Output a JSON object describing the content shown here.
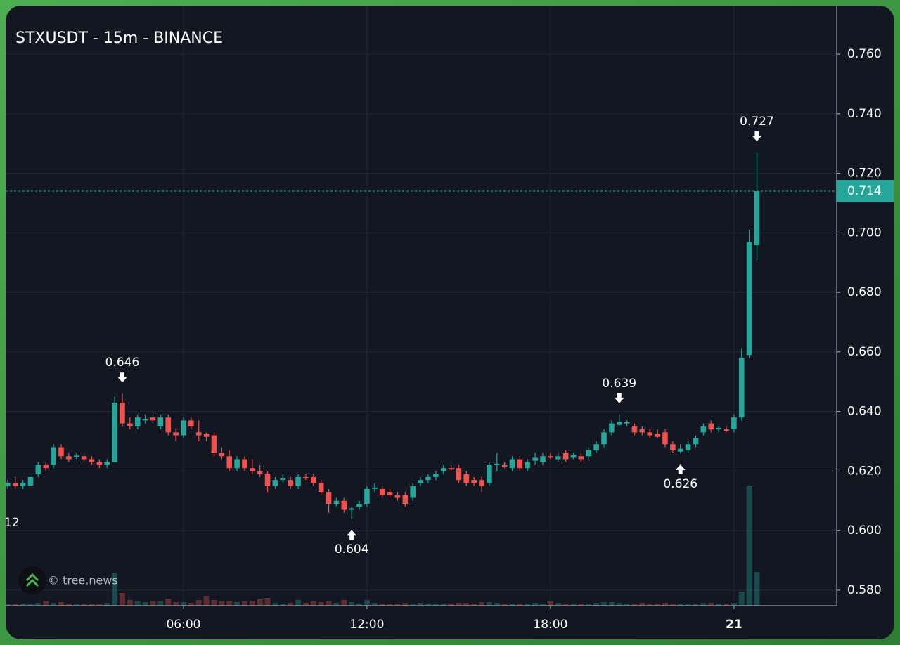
{
  "chart_data": {
    "type": "candlestick",
    "title": "STXUSDT - 15m - BINANCE",
    "watermark": "© tree.news",
    "edge_label": "12",
    "up_color": "#26a69a",
    "down_color": "#ef5350",
    "grid": true,
    "last_price": {
      "value": 0.714,
      "label": "0.714"
    },
    "xlim": [
      0.184,
      27.36
    ],
    "xticks": [
      {
        "value": 6,
        "label": "06:00"
      },
      {
        "value": 12,
        "label": "12:00"
      },
      {
        "value": 18,
        "label": "18:00"
      },
      {
        "value": 24,
        "label": "21"
      }
    ],
    "ylim": [
      0.5748,
      0.7763
    ],
    "yticks": [
      {
        "value": 0.58,
        "label": "0.580"
      },
      {
        "value": 0.6,
        "label": "0.600"
      },
      {
        "value": 0.62,
        "label": "0.620"
      },
      {
        "value": 0.64,
        "label": "0.640"
      },
      {
        "value": 0.66,
        "label": "0.660"
      },
      {
        "value": 0.68,
        "label": "0.680"
      },
      {
        "value": 0.7,
        "label": "0.700"
      },
      {
        "value": 0.72,
        "label": "0.720"
      },
      {
        "value": 0.74,
        "label": "0.740"
      },
      {
        "value": 0.76,
        "label": "0.760"
      }
    ],
    "x": [
      0.25,
      0.5,
      0.75,
      1,
      1.25,
      1.5,
      1.75,
      2,
      2.25,
      2.5,
      2.75,
      3,
      3.25,
      3.5,
      3.75,
      4,
      4.25,
      4.5,
      4.75,
      5,
      5.25,
      5.5,
      5.75,
      6,
      6.25,
      6.5,
      6.75,
      7,
      7.25,
      7.5,
      7.75,
      8,
      8.25,
      8.5,
      8.75,
      9,
      9.25,
      9.5,
      9.75,
      10,
      10.25,
      10.5,
      10.75,
      11,
      11.25,
      11.5,
      11.75,
      12,
      12.25,
      12.5,
      12.75,
      13,
      13.25,
      13.5,
      13.75,
      14,
      14.25,
      14.5,
      14.75,
      15,
      15.25,
      15.5,
      15.75,
      16,
      16.25,
      16.5,
      16.75,
      17,
      17.25,
      17.5,
      17.75,
      18,
      18.25,
      18.5,
      18.75,
      19,
      19.25,
      19.5,
      19.75,
      20,
      20.25,
      20.5,
      20.75,
      21,
      21.25,
      21.5,
      21.75,
      22,
      22.25,
      22.5,
      22.75,
      23,
      23.25,
      23.5,
      23.75,
      24,
      24.25,
      24.5,
      24.75
    ],
    "open": [
      0.615,
      0.616,
      0.615,
      0.615,
      0.619,
      0.622,
      0.622,
      0.628,
      0.625,
      0.6248,
      0.625,
      0.624,
      0.623,
      0.622,
      0.623,
      0.643,
      0.636,
      0.635,
      0.637,
      0.638,
      0.635,
      0.638,
      0.633,
      0.632,
      0.637,
      0.633,
      0.6325,
      0.632,
      0.626,
      0.625,
      0.621,
      0.624,
      0.621,
      0.62,
      0.619,
      0.615,
      0.617,
      0.617,
      0.615,
      0.618,
      0.618,
      0.616,
      0.613,
      0.609,
      0.61,
      0.607,
      0.608,
      0.609,
      0.614,
      0.614,
      0.613,
      0.612,
      0.612,
      0.611,
      0.616,
      0.617,
      0.618,
      0.62,
      0.621,
      0.621,
      0.619,
      0.617,
      0.617,
      0.616,
      0.622,
      0.622,
      0.621,
      0.624,
      0.621,
      0.6235,
      0.623,
      0.625,
      0.624,
      0.626,
      0.6245,
      0.625,
      0.625,
      0.627,
      0.629,
      0.633,
      0.6355,
      0.636,
      0.635,
      0.634,
      0.633,
      0.6325,
      0.633,
      0.629,
      0.6265,
      0.627,
      0.629,
      0.633,
      0.636,
      0.634,
      0.634,
      0.634,
      0.638,
      0.659,
      0.696
    ],
    "high": [
      0.617,
      0.618,
      0.617,
      0.618,
      0.623,
      0.623,
      0.629,
      0.629,
      0.626,
      0.626,
      0.626,
      0.625,
      0.624,
      0.624,
      0.645,
      0.646,
      0.638,
      0.639,
      0.639,
      0.639,
      0.639,
      0.639,
      0.634,
      0.638,
      0.638,
      0.637,
      0.633,
      0.633,
      0.628,
      0.627,
      0.625,
      0.625,
      0.624,
      0.622,
      0.62,
      0.618,
      0.619,
      0.618,
      0.619,
      0.619,
      0.619,
      0.617,
      0.614,
      0.611,
      0.611,
      0.608,
      0.61,
      0.615,
      0.616,
      0.615,
      0.614,
      0.613,
      0.613,
      0.616,
      0.618,
      0.619,
      0.62,
      0.622,
      0.622,
      0.622,
      0.62,
      0.618,
      0.618,
      0.623,
      0.626,
      0.623,
      0.625,
      0.625,
      0.624,
      0.626,
      0.626,
      0.626,
      0.626,
      0.627,
      0.626,
      0.626,
      0.628,
      0.63,
      0.634,
      0.637,
      0.639,
      0.637,
      0.636,
      0.635,
      0.634,
      0.634,
      0.634,
      0.63,
      0.629,
      0.63,
      0.632,
      0.636,
      0.637,
      0.635,
      0.635,
      0.639,
      0.661,
      0.701,
      0.727
    ],
    "low": [
      0.614,
      0.614,
      0.614,
      0.615,
      0.618,
      0.62,
      0.621,
      0.624,
      0.623,
      0.624,
      0.623,
      0.622,
      0.621,
      0.621,
      0.623,
      0.635,
      0.634,
      0.634,
      0.636,
      0.636,
      0.634,
      0.632,
      0.63,
      0.631,
      0.634,
      0.63,
      0.63,
      0.625,
      0.624,
      0.62,
      0.62,
      0.62,
      0.619,
      0.618,
      0.613,
      0.614,
      0.616,
      0.614,
      0.614,
      0.617,
      0.615,
      0.612,
      0.606,
      0.608,
      0.606,
      0.604,
      0.607,
      0.608,
      0.613,
      0.611,
      0.611,
      0.61,
      0.608,
      0.61,
      0.615,
      0.616,
      0.617,
      0.619,
      0.62,
      0.616,
      0.615,
      0.615,
      0.613,
      0.615,
      0.62,
      0.621,
      0.62,
      0.62,
      0.62,
      0.622,
      0.622,
      0.624,
      0.623,
      0.623,
      0.624,
      0.623,
      0.624,
      0.626,
      0.628,
      0.632,
      0.635,
      0.635,
      0.632,
      0.632,
      0.631,
      0.631,
      0.628,
      0.626,
      0.626,
      0.626,
      0.628,
      0.632,
      0.633,
      0.633,
      0.633,
      0.633,
      0.637,
      0.658,
      0.691
    ],
    "close": [
      0.616,
      0.615,
      0.616,
      0.618,
      0.622,
      0.621,
      0.628,
      0.625,
      0.624,
      0.6252,
      0.624,
      0.623,
      0.622,
      0.623,
      0.643,
      0.636,
      0.635,
      0.638,
      0.6375,
      0.637,
      0.638,
      0.633,
      0.632,
      0.637,
      0.635,
      0.632,
      0.6315,
      0.626,
      0.625,
      0.621,
      0.624,
      0.621,
      0.62,
      0.619,
      0.615,
      0.617,
      0.6175,
      0.615,
      0.618,
      0.6175,
      0.616,
      0.613,
      0.609,
      0.61,
      0.607,
      0.6075,
      0.609,
      0.614,
      0.6145,
      0.612,
      0.612,
      0.611,
      0.609,
      0.615,
      0.617,
      0.618,
      0.619,
      0.621,
      0.6205,
      0.617,
      0.616,
      0.616,
      0.615,
      0.622,
      0.6225,
      0.6215,
      0.624,
      0.621,
      0.623,
      0.6245,
      0.625,
      0.6245,
      0.625,
      0.624,
      0.6255,
      0.624,
      0.627,
      0.629,
      0.633,
      0.636,
      0.6365,
      0.6365,
      0.633,
      0.633,
      0.632,
      0.6315,
      0.629,
      0.627,
      0.6275,
      0.629,
      0.631,
      0.635,
      0.634,
      0.6345,
      0.6335,
      0.638,
      0.658,
      0.697,
      0.714
    ],
    "volume": [
      2,
      2,
      3,
      3,
      4,
      7,
      4,
      5,
      3,
      3,
      3,
      2,
      3,
      4,
      46,
      18,
      8,
      6,
      5,
      6,
      6,
      10,
      5,
      5,
      4,
      8,
      14,
      8,
      6,
      6,
      5,
      6,
      7,
      9,
      11,
      4,
      3,
      4,
      8,
      4,
      6,
      5,
      6,
      4,
      8,
      5,
      3,
      8,
      4,
      3,
      3,
      3,
      4,
      3,
      4,
      3,
      3,
      3,
      3,
      4,
      4,
      3,
      5,
      5,
      4,
      3,
      3,
      3,
      3,
      4,
      3,
      6,
      4,
      3,
      3,
      3,
      3,
      4,
      5,
      5,
      4,
      3,
      3,
      4,
      3,
      3,
      4,
      3,
      3,
      3,
      3,
      4,
      4,
      3,
      3,
      4,
      20,
      170,
      48
    ],
    "annotations": [
      {
        "value": 0.646,
        "x": 4,
        "position": "above"
      },
      {
        "value": 0.604,
        "x": 11.5,
        "position": "below"
      },
      {
        "value": 0.639,
        "x": 20.25,
        "position": "above"
      },
      {
        "value": 0.626,
        "x": 22.25,
        "position": "below"
      },
      {
        "value": 0.727,
        "x": 24.75,
        "position": "above"
      }
    ]
  }
}
